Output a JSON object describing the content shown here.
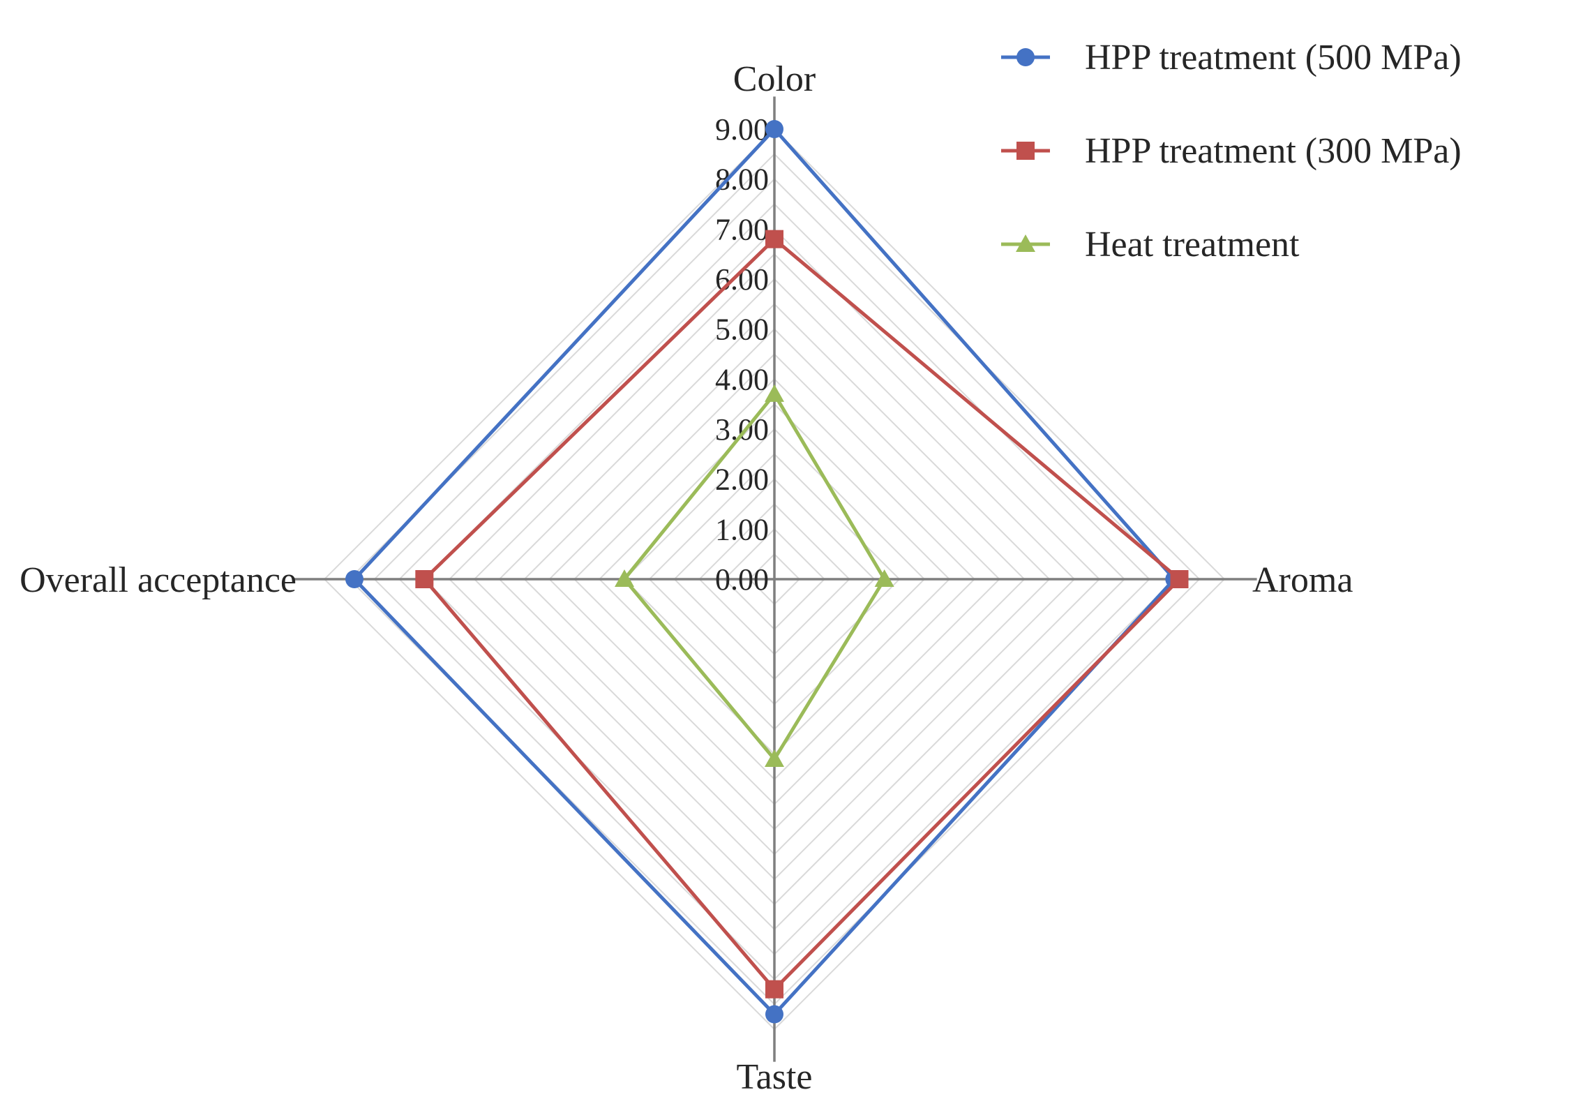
{
  "chart_data": {
    "type": "radar",
    "categories": [
      "Color",
      "Aroma",
      "Taste",
      "Overall acceptance"
    ],
    "range": [
      0,
      9
    ],
    "ticks": [
      "0.00",
      "1.00",
      "2.00",
      "3.00",
      "4.00",
      "5.00",
      "6.00",
      "7.00",
      "8.00",
      "9.00"
    ],
    "minor_grid_step": 0.5,
    "legend_position": "top-right",
    "series": [
      {
        "name": "HPP treatment (500 MPa)",
        "values": [
          9.0,
          8.0,
          8.7,
          8.4
        ],
        "color": "#4472C4",
        "marker": "circle"
      },
      {
        "name": "HPP treatment (300 MPa)",
        "values": [
          6.8,
          8.1,
          8.2,
          7.0
        ],
        "color": "#C0504D",
        "marker": "square"
      },
      {
        "name": "Heat treatment",
        "values": [
          3.7,
          2.2,
          3.6,
          3.0
        ],
        "color": "#9BBB59",
        "marker": "triangle"
      }
    ]
  }
}
